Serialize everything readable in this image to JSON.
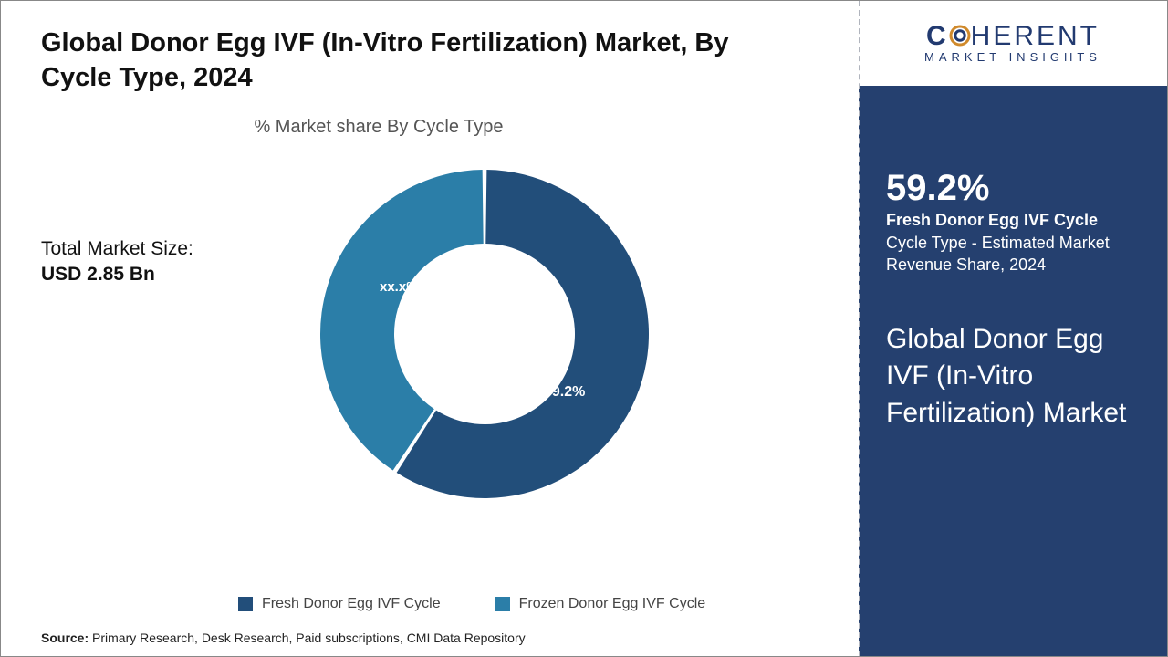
{
  "main": {
    "title": "Global Donor Egg IVF (In-Vitro Fertilization) Market, By Cycle Type, 2024",
    "chart_title": "% Market share By Cycle Type",
    "market_size_label": "Total Market Size:",
    "market_size_value": "USD 2.85 Bn",
    "source_label": "Source:",
    "source_text": " Primary Research, Desk Research, Paid subscriptions, CMI Data Repository"
  },
  "donut": {
    "type": "donut",
    "slices": [
      {
        "name": "Fresh Donor Egg IVF Cycle",
        "value": 59.2,
        "label": "59.2%",
        "color": "#224e7a"
      },
      {
        "name": "Frozen Donor Egg IVF Cycle",
        "value": 40.8,
        "label": "xx.x%",
        "color": "#2b7ea8"
      }
    ],
    "inner_radius_ratio": 0.55,
    "slice_gap_deg": 1.5,
    "background_color": "#ffffff",
    "label_color": "#ffffff",
    "label_fontsize": 16
  },
  "legend": {
    "items": [
      {
        "swatch_color": "#224e7a",
        "label": "Fresh Donor Egg IVF Cycle"
      },
      {
        "swatch_color": "#2b7ea8",
        "label": "Frozen Donor Egg IVF Cycle"
      }
    ]
  },
  "brand": {
    "name_prefix": "C",
    "name_core": "HERENT",
    "sub": "MARKET INSIGHTS",
    "ring_outer_color": "#d08a2c",
    "ring_inner_color": "#223a70"
  },
  "side_panel": {
    "background_color": "#25406f",
    "pct": "59.2%",
    "lead": "Fresh Donor Egg IVF Cycle",
    "desc": "Cycle Type - Estimated Market Revenue Share, 2024",
    "big_title": "Global Donor Egg IVF (In-Vitro Fertilization) Market"
  }
}
